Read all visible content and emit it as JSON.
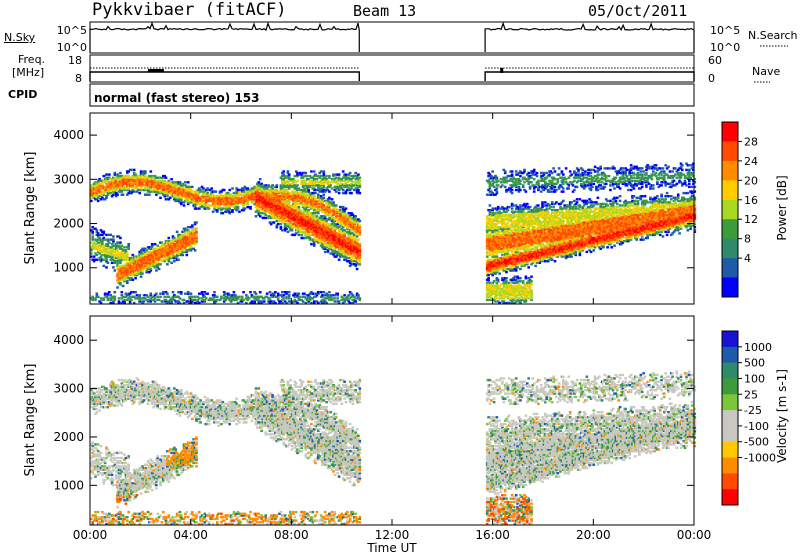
{
  "header": {
    "radar": "Pykkvibaer (fitACF)",
    "beam": "Beam 13",
    "date": "05/Oct/2011"
  },
  "noise_panel": {
    "left_label": "N.Sky",
    "right_label": "N.Search",
    "left_ticks": [
      "10^5",
      "10^0"
    ],
    "right_ticks": [
      "10^5",
      "10^0"
    ]
  },
  "freq_panel": {
    "left_label_1": "Freq.",
    "left_label_2": "[MHz]",
    "right_label": "Nave",
    "left_ticks": [
      "18",
      "8"
    ],
    "right_ticks": [
      "60",
      "0"
    ]
  },
  "cpid_panel": {
    "label": "CPID",
    "text": "normal (fast stereo) 153"
  },
  "chart_data": [
    {
      "type": "heatmap",
      "name": "Power",
      "ylabel": "Slant Range [km]",
      "yticks": [
        1000,
        2000,
        3000,
        4000
      ],
      "ylim": [
        180,
        4500
      ],
      "colorbar": {
        "label": "Power [dB]",
        "ticks": [
          "28",
          "24",
          "20",
          "16",
          "12",
          "8",
          "4"
        ],
        "colors": [
          "#ff0000",
          "#ff4a00",
          "#ff8c00",
          "#ffcc00",
          "#a8d820",
          "#3c9c3c",
          "#2e8a6a",
          "#1e5aa8",
          "#0000ff"
        ]
      }
    },
    {
      "type": "heatmap",
      "name": "Velocity",
      "ylabel": "Slant Range [km]",
      "yticks": [
        1000,
        2000,
        3000,
        4000
      ],
      "ylim": [
        180,
        4500
      ],
      "colorbar": {
        "label": "Velocity [m s-1]",
        "ticks": [
          "1000",
          "500",
          "100",
          "25",
          "-25",
          "-100",
          "-500",
          "-1000"
        ],
        "colors": [
          "#1414d2",
          "#1e5aa8",
          "#2e8a6a",
          "#3c9c3c",
          "#7ac83a",
          "#c8c8c0",
          "#c8c8c0",
          "#ffc800",
          "#ff8c00",
          "#ff4a00",
          "#ff0000"
        ]
      }
    }
  ],
  "x_axis": {
    "ticks": [
      "00:00",
      "04:00",
      "08:00",
      "12:00",
      "16:00",
      "20:00",
      "00:00"
    ],
    "label": "Time UT",
    "xlim_hours": [
      0,
      24
    ]
  },
  "coverage_hours": [
    [
      0.0,
      10.7
    ],
    [
      15.7,
      24.0
    ]
  ]
}
